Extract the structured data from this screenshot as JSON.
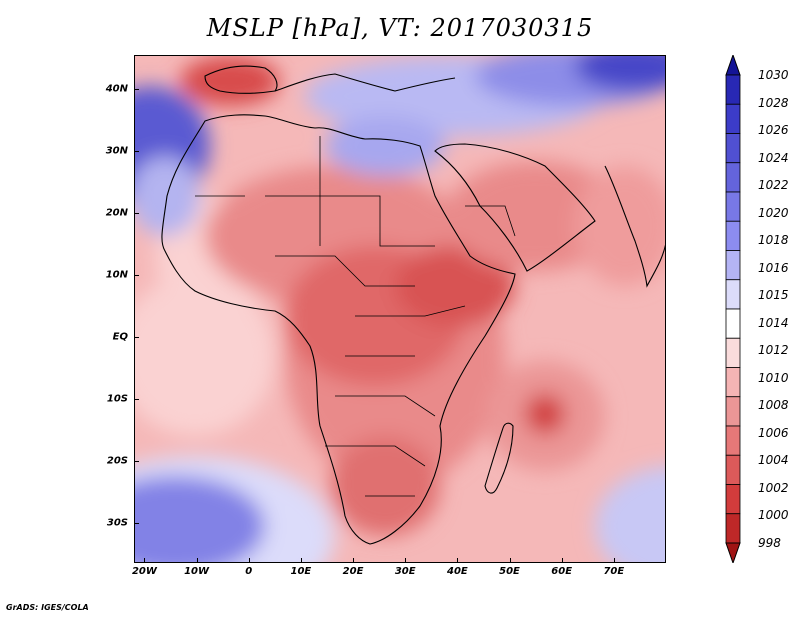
{
  "title": "MSLP [hPa], VT: 2017030315",
  "footer": "GrADS: IGES/COLA",
  "map": {
    "lat_labels": [
      "40N",
      "30N",
      "20N",
      "10N",
      "EQ",
      "10S",
      "20S",
      "30S"
    ],
    "lat_values": [
      40,
      30,
      20,
      10,
      0,
      -10,
      -20,
      -30
    ],
    "lon_labels": [
      "20W",
      "10W",
      "0",
      "10E",
      "20E",
      "30E",
      "40E",
      "50E",
      "60E",
      "70E"
    ],
    "lon_values": [
      -20,
      -10,
      0,
      10,
      20,
      30,
      40,
      50,
      60,
      70
    ],
    "extent": {
      "lon_min": -22,
      "lon_max": 80,
      "lat_min": -36.5,
      "lat_max": 45.5
    }
  },
  "colorbar": {
    "levels": [
      "1030",
      "1028",
      "1026",
      "1024",
      "1022",
      "1020",
      "1018",
      "1016",
      "1015",
      "1014",
      "1012",
      "1010",
      "1008",
      "1006",
      "1004",
      "1002",
      "1000",
      "998"
    ],
    "colors": [
      "#141496",
      "#2828b4",
      "#3c3cc8",
      "#5050d2",
      "#6464dc",
      "#7878e6",
      "#8c8cf0",
      "#b4b4f5",
      "#dcdcfa",
      "#ffffff",
      "#fadcdc",
      "#f5b4b4",
      "#eb9696",
      "#e67878",
      "#dc5a5a",
      "#d23c3c",
      "#be2828",
      "#a01414"
    ]
  }
}
